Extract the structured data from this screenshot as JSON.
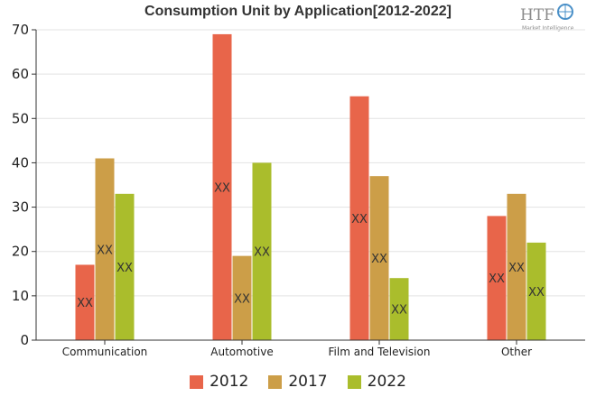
{
  "title": "Consumption Unit by  Application[2012-2022]",
  "logo": {
    "brand": "HTF",
    "tagline": "Market Intelligence"
  },
  "chart_data": {
    "type": "bar",
    "title": "Consumption Unit by  Application[2012-2022]",
    "xlabel": "",
    "ylabel": "",
    "ylim": [
      0,
      70
    ],
    "yticks": [
      0,
      10,
      20,
      30,
      40,
      50,
      60,
      70
    ],
    "grid": true,
    "legend_position": "bottom",
    "categories": [
      "Communication",
      "Automotive",
      "Film and Television",
      "Other"
    ],
    "series": [
      {
        "name": "2012",
        "color": "#e8654a",
        "values": [
          17,
          69,
          55,
          28
        ]
      },
      {
        "name": "2017",
        "color": "#cc9e48",
        "values": [
          41,
          19,
          37,
          33
        ]
      },
      {
        "name": "2022",
        "color": "#aabd2c",
        "values": [
          33,
          40,
          14,
          22
        ]
      }
    ],
    "data_label": "XX"
  }
}
